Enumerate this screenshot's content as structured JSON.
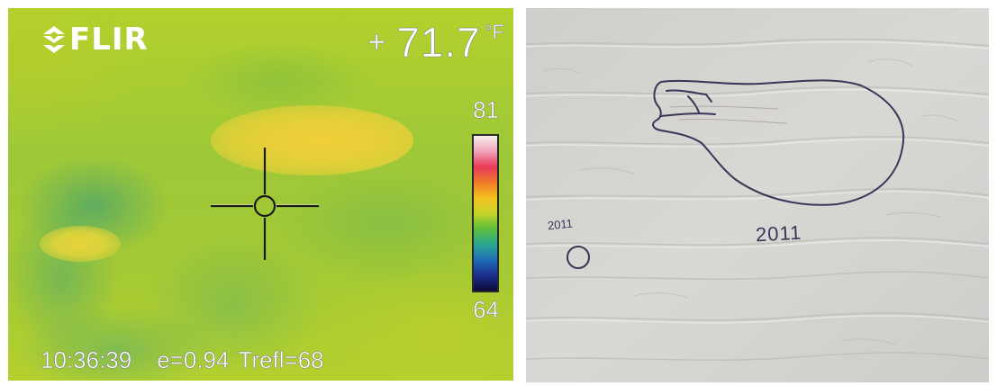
{
  "thermal": {
    "logo_text": "FLIR",
    "temp_prefix": "+",
    "temp_value": "71.7",
    "temp_unit": "°F",
    "scale_max": "81",
    "scale_min": "64",
    "time": "10:36:39",
    "emissivity": "e=0.94",
    "trefl": "Trefl=68",
    "colorbar_colors": [
      "#f4f0ee",
      "#f2a3b8",
      "#e83a5a",
      "#f07a2a",
      "#f4c21e",
      "#c8d22a",
      "#5cbf3a",
      "#2aa88e",
      "#1e6fb8",
      "#1a2f8c",
      "#0a0a3a"
    ]
  },
  "wall": {
    "label_small": "2011",
    "label_large": "2011",
    "ink_color": "#3a3658"
  }
}
